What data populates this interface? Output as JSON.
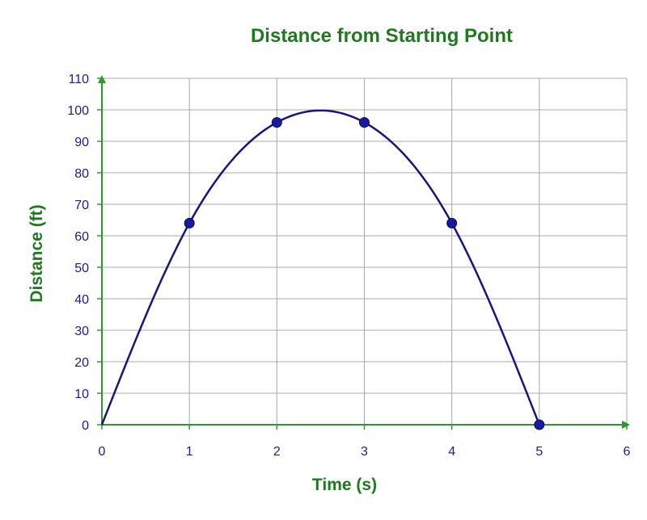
{
  "colors": {
    "title": "#1f7a1f",
    "axis": "#2e9a2e",
    "tick_text": "#1c1c8c",
    "grid": "#a8a8a8",
    "curve": "#161680",
    "marker": "#1a1aa0"
  },
  "chart_data": {
    "type": "scatter",
    "title": "Distance from Starting Point",
    "xlabel": "Time (s)",
    "ylabel": "Distance (ft)",
    "xlim": [
      0,
      6
    ],
    "ylim": [
      0,
      110
    ],
    "x_ticks": [
      "0",
      "1",
      "2",
      "3",
      "4",
      "5",
      "6"
    ],
    "y_ticks": [
      "0",
      "10",
      "20",
      "30",
      "40",
      "50",
      "60",
      "70",
      "80",
      "90",
      "100",
      "110"
    ],
    "grid": true,
    "smooth_curve": true,
    "points": [
      {
        "x": 0,
        "y": 0
      },
      {
        "x": 1,
        "y": 64
      },
      {
        "x": 2,
        "y": 96
      },
      {
        "x": 3,
        "y": 96
      },
      {
        "x": 4,
        "y": 64
      },
      {
        "x": 5,
        "y": 0
      }
    ],
    "marked_points": [
      1,
      2,
      3,
      4,
      5
    ]
  }
}
